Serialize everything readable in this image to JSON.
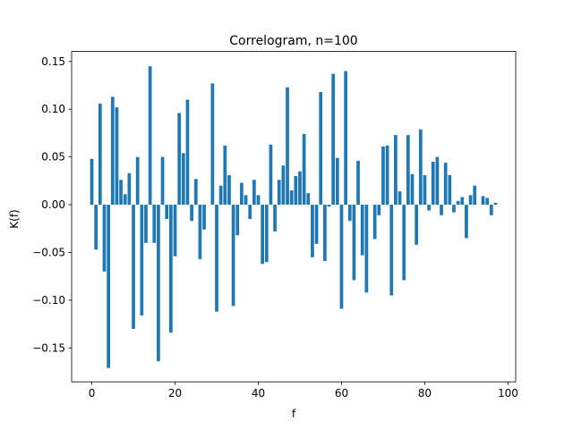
{
  "chart_data": {
    "type": "bar",
    "title": "Correlogram, n=100",
    "xlabel": "f",
    "ylabel": "K(f)",
    "xlim": [
      -4.85,
      101.85
    ],
    "ylim": [
      -0.1855,
      0.1605
    ],
    "xticks": [
      0,
      20,
      40,
      60,
      80,
      100
    ],
    "yticks": [
      -0.15,
      -0.1,
      -0.05,
      0.0,
      0.05,
      0.1,
      0.15
    ],
    "ytick_labels": [
      "−0.15",
      "−0.10",
      "−0.05",
      "0.00",
      "0.05",
      "0.10",
      "0.15"
    ],
    "grid": false,
    "bar_color": "#1f77b4",
    "x": [
      0,
      1,
      2,
      3,
      4,
      5,
      6,
      7,
      8,
      9,
      10,
      11,
      12,
      13,
      14,
      15,
      16,
      17,
      18,
      19,
      20,
      21,
      22,
      23,
      24,
      25,
      26,
      27,
      28,
      29,
      30,
      31,
      32,
      33,
      34,
      35,
      36,
      37,
      38,
      39,
      40,
      41,
      42,
      43,
      44,
      45,
      46,
      47,
      48,
      49,
      50,
      51,
      52,
      53,
      54,
      55,
      56,
      57,
      58,
      59,
      60,
      61,
      62,
      63,
      64,
      65,
      66,
      67,
      68,
      69,
      70,
      71,
      72,
      73,
      74,
      75,
      76,
      77,
      78,
      79,
      80,
      81,
      82,
      83,
      84,
      85,
      86,
      87,
      88,
      89,
      90,
      91,
      92,
      93,
      94,
      95,
      96,
      97
    ],
    "values": [
      0.048,
      -0.047,
      0.106,
      -0.07,
      -0.171,
      0.113,
      0.102,
      0.026,
      0.011,
      0.033,
      -0.13,
      0.05,
      -0.116,
      -0.04,
      0.145,
      -0.04,
      -0.164,
      0.05,
      -0.015,
      -0.134,
      -0.054,
      0.096,
      0.054,
      0.11,
      -0.017,
      0.027,
      -0.057,
      -0.026,
      0.0,
      0.127,
      -0.112,
      0.02,
      0.062,
      0.031,
      -0.106,
      -0.032,
      0.023,
      0.01,
      -0.015,
      0.026,
      0.01,
      -0.062,
      -0.06,
      0.063,
      -0.028,
      0.026,
      0.041,
      0.123,
      0.015,
      0.03,
      0.035,
      0.074,
      0.012,
      -0.055,
      -0.041,
      0.118,
      -0.059,
      -0.002,
      0.137,
      0.049,
      -0.109,
      0.14,
      -0.017,
      -0.079,
      0.046,
      -0.053,
      -0.092,
      0.0,
      -0.036,
      -0.011,
      0.061,
      0.062,
      -0.095,
      0.073,
      0.014,
      -0.079,
      0.073,
      0.032,
      -0.042,
      0.079,
      0.031,
      -0.006,
      0.045,
      0.05,
      -0.011,
      0.044,
      0.031,
      -0.008,
      0.004,
      0.008,
      -0.035,
      0.01,
      0.02,
      0.0,
      0.009,
      0.007,
      -0.011,
      0.002
    ]
  }
}
